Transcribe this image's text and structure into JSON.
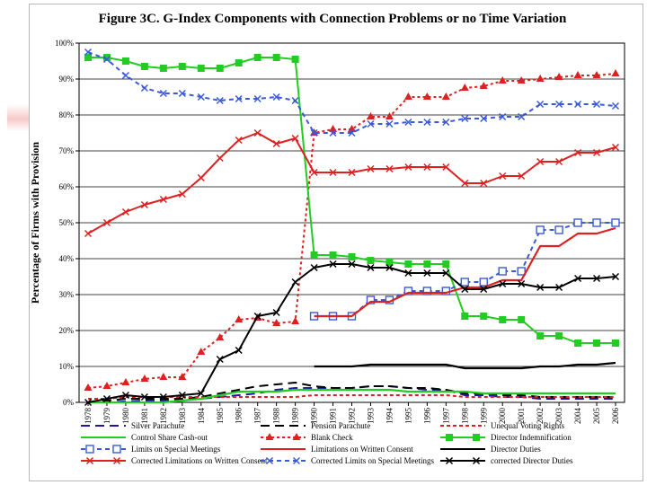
{
  "chart_data": {
    "type": "line",
    "title": "Figure 3C. G-Index Components with Connection Problems or no Time Variation",
    "xlabel": "",
    "ylabel": "Percentage of Firms with Provision",
    "ylim": [
      0,
      100
    ],
    "yticks": [
      0,
      10,
      20,
      30,
      40,
      50,
      60,
      70,
      80,
      90,
      100
    ],
    "ytick_labels": [
      "0%",
      "10%",
      "20%",
      "30%",
      "40%",
      "50%",
      "60%",
      "70%",
      "80%",
      "90%",
      "100%"
    ],
    "grid": "horizontal",
    "legend_position": "bottom",
    "x": [
      "1978",
      "1979",
      "1980",
      "1981",
      "1982",
      "1983",
      "1984",
      "1985",
      "1986",
      "1987",
      "1988",
      "1989",
      "1990",
      "1991",
      "1992",
      "1993",
      "1994",
      "1995",
      "1996",
      "1997",
      "1998",
      "1999",
      "2000",
      "2001",
      "2002",
      "2003",
      "2004",
      "2005",
      "2006"
    ],
    "series": [
      {
        "name": "Silver Parachute",
        "color": "#1a1aa0",
        "dash": "long",
        "marker": "none",
        "values": [
          0,
          0,
          0.3,
          0.5,
          0.5,
          0.7,
          1,
          1.5,
          2,
          2.5,
          3.5,
          4,
          4,
          4,
          4,
          4.5,
          4.5,
          4,
          3.5,
          3.5,
          2,
          2,
          1.5,
          1.5,
          1,
          1,
          1,
          1,
          1
        ]
      },
      {
        "name": "Pension Parachute",
        "color": "#000000",
        "dash": "long",
        "marker": "none",
        "values": [
          0,
          0.5,
          1,
          1,
          1,
          1,
          1.5,
          2.5,
          3.5,
          4.5,
          5,
          5.5,
          4.5,
          4,
          4,
          4.5,
          4.5,
          4,
          4,
          3.5,
          2.5,
          2.5,
          2,
          2,
          1.5,
          1.5,
          1.5,
          1.5,
          1.5
        ]
      },
      {
        "name": "Unequal Voting Rights",
        "color": "#dd2020",
        "dash": "short",
        "marker": "none",
        "values": [
          1,
          1,
          1.5,
          1.5,
          1.5,
          1.5,
          1.5,
          1.5,
          1.5,
          1.5,
          1.5,
          1.5,
          2,
          2,
          2,
          2,
          2,
          2,
          2,
          2,
          1.5,
          1.5,
          1.5,
          1.5,
          1.5,
          1.5,
          1.5,
          1.5,
          1.5
        ]
      },
      {
        "name": "Control Share Cash-out",
        "color": "#22cc22",
        "dash": "solid",
        "marker": "none",
        "values": [
          0,
          0,
          0,
          0,
          0,
          0.5,
          1,
          2,
          3,
          3,
          3,
          3.5,
          3.5,
          3.5,
          3.5,
          3.5,
          3.5,
          3,
          3,
          3,
          3,
          2.5,
          2.5,
          2.5,
          2.5,
          2.5,
          2.5,
          2.5,
          2.5
        ]
      },
      {
        "name": "Blank Check",
        "color": "#dd2020",
        "dash": "dot",
        "marker": "triangle",
        "values": [
          4,
          4.5,
          5.5,
          6.5,
          7,
          7,
          14,
          18,
          23,
          23.5,
          22,
          22.5,
          75,
          76,
          76,
          79.5,
          79.5,
          85,
          85,
          85,
          87.5,
          88,
          89.5,
          89.5,
          90,
          90.5,
          91,
          91,
          91.5
        ]
      },
      {
        "name": "Director Indemnification",
        "color": "#22cc22",
        "dash": "solid",
        "marker": "square",
        "values": [
          96,
          96,
          95,
          93.5,
          93,
          93.5,
          93,
          93,
          94.5,
          96,
          96,
          95.5,
          41,
          41,
          40.5,
          39.5,
          39,
          38.5,
          38.5,
          38.5,
          24,
          24,
          23,
          23,
          18.5,
          18.5,
          16.5,
          16.5,
          16.5
        ]
      },
      {
        "name": "Limits on Special Meetings",
        "color": "#3a5ad8",
        "dash": "dash",
        "marker": "square-open",
        "values": [
          null,
          null,
          null,
          null,
          null,
          null,
          null,
          null,
          null,
          null,
          null,
          null,
          24,
          24,
          24,
          28.5,
          28.5,
          31,
          31,
          31,
          33.5,
          33.5,
          36.5,
          36.5,
          48,
          48,
          50,
          50,
          50
        ]
      },
      {
        "name": "Limitations on Written Consent",
        "color": "#dd2020",
        "dash": "solid",
        "marker": "none",
        "values": [
          null,
          null,
          null,
          null,
          null,
          null,
          null,
          null,
          null,
          null,
          null,
          null,
          24,
          24,
          24,
          28,
          28,
          30.5,
          30.5,
          30.5,
          32,
          32,
          34,
          34,
          43.5,
          43.5,
          47,
          47,
          48.5
        ]
      },
      {
        "name": "Director Duties",
        "color": "#000000",
        "dash": "solid",
        "marker": "none",
        "values": [
          null,
          null,
          null,
          null,
          null,
          null,
          null,
          null,
          null,
          null,
          null,
          null,
          10,
          10,
          10,
          10.5,
          10.5,
          10.5,
          10.5,
          10.5,
          9.5,
          9.5,
          9.5,
          9.5,
          10,
          10,
          10.5,
          10.5,
          11
        ]
      },
      {
        "name": "Corrected Limitations on Written Consent",
        "color": "#dd2020",
        "dash": "solid",
        "marker": "cross",
        "values": [
          47,
          50,
          53,
          55,
          56.5,
          58,
          62.5,
          68,
          73,
          75,
          72,
          73.5,
          64,
          64,
          64,
          65,
          65,
          65.5,
          65.5,
          65.5,
          61,
          61,
          63,
          63,
          67,
          67,
          69.5,
          69.5,
          71
        ]
      },
      {
        "name": "Corrected Limits on Special Meetings",
        "color": "#3a5ad8",
        "dash": "dash",
        "marker": "cross",
        "values": [
          97.5,
          95.5,
          91,
          87.5,
          86,
          86,
          85,
          84,
          84.5,
          84.5,
          85,
          84,
          75,
          75,
          75,
          77.5,
          77.5,
          78,
          78,
          78,
          79,
          79,
          79.5,
          79.5,
          83,
          83,
          83,
          83,
          82.5
        ]
      },
      {
        "name": "corrected Director Duties",
        "color": "#000000",
        "dash": "solid",
        "marker": "cross",
        "values": [
          0,
          1,
          2,
          1.5,
          1.5,
          2,
          2.5,
          12,
          14.5,
          24,
          25,
          33.5,
          37.5,
          38.5,
          38.5,
          37.5,
          37.5,
          36,
          36,
          36,
          31.5,
          31.5,
          33,
          33,
          32,
          32,
          34.5,
          34.5,
          35
        ]
      }
    ]
  }
}
